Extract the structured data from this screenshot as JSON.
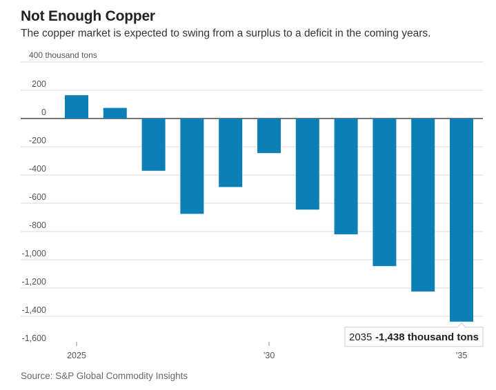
{
  "chart_data": {
    "type": "bar",
    "title": "Not Enough Copper",
    "subtitle": "The copper market is expected to swing from a surplus to a deficit in the coming years.",
    "ylabel": "thousand tons",
    "y_top_label": "400 thousand tons",
    "y_ticks": [
      "200",
      "0",
      "-200",
      "-400",
      "-600",
      "-800",
      "-1,000",
      "-1,200",
      "-1,400",
      "-1,600"
    ],
    "ylim": [
      -1600,
      400
    ],
    "categories": [
      2025,
      2026,
      2027,
      2028,
      2029,
      2030,
      2031,
      2032,
      2033,
      2034,
      2035
    ],
    "x_tick_labels": [
      "2025",
      "’30",
      "’35"
    ],
    "values": [
      165,
      75,
      -370,
      -675,
      -485,
      -245,
      -645,
      -820,
      -1045,
      -1225,
      -1438
    ],
    "bar_color": "#0d7fb7",
    "grid": true,
    "annotation": {
      "year": "2035",
      "value": "-1,438 thousand tons"
    },
    "source": "Source: S&P Global Commodity Insights"
  }
}
